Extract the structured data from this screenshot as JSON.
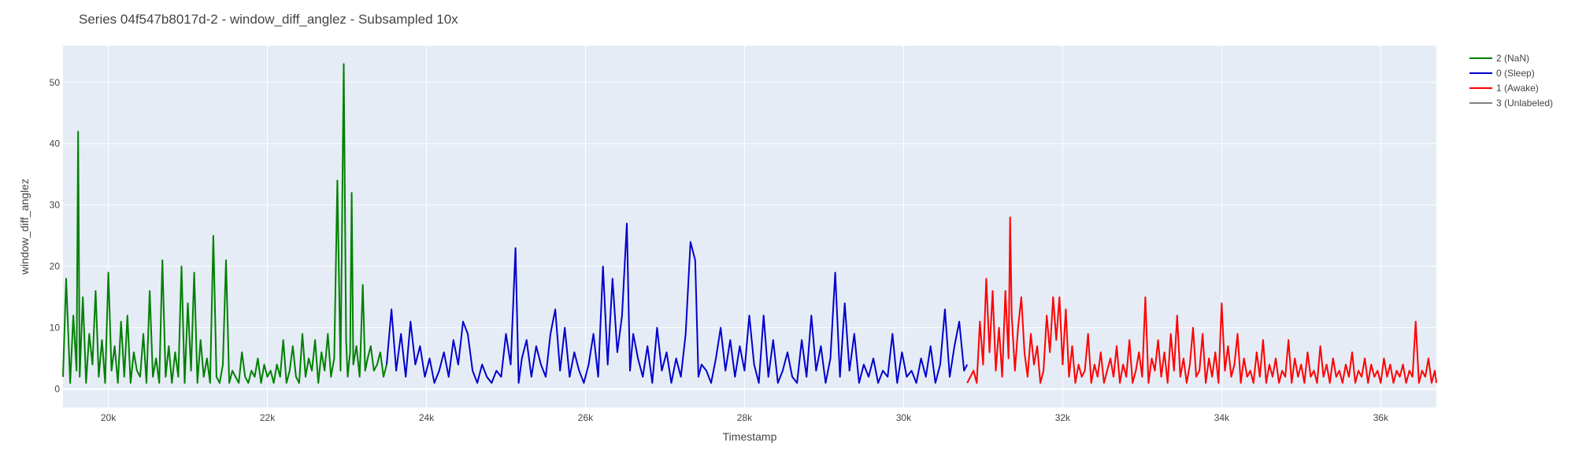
{
  "chart_data": {
    "type": "line",
    "title": "Series 04f547b8017d-2 - window_diff_anglez - Subsampled 10x",
    "xlabel": "Timestamp",
    "ylabel": "window_diff_anglez",
    "xlim": [
      19430,
      36700
    ],
    "ylim": [
      -3,
      56
    ],
    "xticks": [
      20000,
      22000,
      24000,
      26000,
      28000,
      30000,
      32000,
      34000,
      36000
    ],
    "xtick_labels": [
      "20k",
      "22k",
      "24k",
      "26k",
      "28k",
      "30k",
      "32k",
      "34k",
      "36k"
    ],
    "yticks": [
      0,
      10,
      20,
      30,
      40,
      50
    ],
    "ytick_labels": [
      "0",
      "10",
      "20",
      "30",
      "40",
      "50"
    ],
    "grid": true,
    "legend_position": "top-right",
    "plot_background": "#e5ecf6",
    "series": [
      {
        "name": "2 (NaN)",
        "color": "#008000",
        "x": [
          19430,
          19470,
          19520,
          19560,
          19600,
          19620,
          19640,
          19680,
          19720,
          19760,
          19800,
          19840,
          19880,
          19920,
          19960,
          20000,
          20040,
          20080,
          20120,
          20160,
          20200,
          20240,
          20280,
          20320,
          20360,
          20400,
          20440,
          20480,
          20520,
          20560,
          20600,
          20640,
          20680,
          20720,
          20760,
          20800,
          20840,
          20880,
          20920,
          20960,
          21000,
          21040,
          21080,
          21120,
          21160,
          21200,
          21240,
          21280,
          21320,
          21360,
          21400,
          21440,
          21480,
          21520,
          21560,
          21600,
          21640,
          21680,
          21720,
          21760,
          21800,
          21840,
          21880,
          21920,
          21960,
          22000,
          22040,
          22080,
          22120,
          22160,
          22200,
          22240,
          22280,
          22320,
          22360,
          22400,
          22440,
          22480,
          22520,
          22560,
          22600,
          22640,
          22680,
          22720,
          22760,
          22800,
          22840,
          22880,
          22920,
          22960,
          22990,
          23010,
          23040,
          23060,
          23080,
          23120,
          23160,
          23200,
          23230,
          23260,
          23300,
          23340,
          23380,
          23420,
          23460,
          23500
        ],
        "y": [
          2,
          18,
          1,
          12,
          3,
          42,
          2,
          15,
          1,
          9,
          4,
          16,
          2,
          8,
          1,
          19,
          3,
          7,
          1,
          11,
          2,
          12,
          1,
          6,
          3,
          2,
          9,
          1,
          16,
          2,
          5,
          1,
          21,
          2,
          7,
          1,
          6,
          2,
          20,
          1,
          14,
          3,
          19,
          1,
          8,
          2,
          5,
          1,
          25,
          2,
          1,
          4,
          21,
          1,
          3,
          2,
          1,
          6,
          2,
          1,
          3,
          2,
          5,
          1,
          4,
          2,
          3,
          1,
          4,
          2,
          8,
          1,
          3,
          7,
          2,
          1,
          9,
          2,
          5,
          3,
          8,
          1,
          6,
          3,
          9,
          2,
          5,
          34,
          3,
          53,
          8,
          2,
          6,
          32,
          4,
          7,
          2,
          17,
          3,
          5,
          7,
          3,
          4,
          6,
          2,
          4
        ]
      },
      {
        "name": "0 (Sleep)",
        "color": "#0000cd",
        "x": [
          23500,
          23560,
          23620,
          23680,
          23740,
          23800,
          23860,
          23920,
          23980,
          24040,
          24100,
          24160,
          24220,
          24280,
          24340,
          24400,
          24460,
          24520,
          24580,
          24640,
          24700,
          24760,
          24820,
          24880,
          24940,
          25000,
          25060,
          25120,
          25160,
          25200,
          25260,
          25320,
          25380,
          25440,
          25500,
          25560,
          25620,
          25680,
          25740,
          25800,
          25860,
          25920,
          25980,
          26040,
          26100,
          26160,
          26220,
          26280,
          26340,
          26400,
          26460,
          26520,
          26560,
          26600,
          26660,
          26720,
          26780,
          26840,
          26900,
          26960,
          27020,
          27080,
          27140,
          27200,
          27260,
          27320,
          27380,
          27420,
          27460,
          27520,
          27580,
          27640,
          27700,
          27760,
          27820,
          27880,
          27940,
          28000,
          28060,
          28120,
          28180,
          28240,
          28300,
          28360,
          28420,
          28480,
          28540,
          28600,
          28660,
          28720,
          28780,
          28840,
          28900,
          28960,
          29020,
          29080,
          29140,
          29200,
          29260,
          29320,
          29380,
          29440,
          29500,
          29560,
          29620,
          29680,
          29740,
          29800,
          29860,
          29920,
          29980,
          30040,
          30100,
          30160,
          30220,
          30280,
          30340,
          30400,
          30460,
          30520,
          30580,
          30640,
          30700,
          30760,
          30800
        ],
        "y": [
          4,
          13,
          3,
          9,
          2,
          11,
          4,
          7,
          2,
          5,
          1,
          3,
          6,
          2,
          8,
          4,
          11,
          9,
          3,
          1,
          4,
          2,
          1,
          3,
          2,
          9,
          4,
          23,
          1,
          5,
          8,
          2,
          7,
          4,
          2,
          9,
          13,
          3,
          10,
          2,
          6,
          3,
          1,
          4,
          9,
          2,
          20,
          4,
          18,
          6,
          12,
          27,
          3,
          9,
          5,
          2,
          7,
          1,
          10,
          3,
          6,
          1,
          5,
          2,
          9,
          24,
          21,
          2,
          4,
          3,
          1,
          5,
          10,
          3,
          8,
          2,
          7,
          3,
          12,
          4,
          1,
          12,
          2,
          8,
          1,
          3,
          6,
          2,
          1,
          8,
          2,
          12,
          3,
          7,
          1,
          5,
          19,
          2,
          14,
          3,
          9,
          1,
          4,
          2,
          5,
          1,
          3,
          2,
          9,
          1,
          6,
          2,
          3,
          1,
          5,
          2,
          7,
          1,
          4,
          13,
          2,
          7,
          11,
          3,
          4
        ]
      },
      {
        "name": "1 (Awake)",
        "color": "#ff0000",
        "x": [
          30800,
          30840,
          30880,
          30920,
          30960,
          31000,
          31040,
          31080,
          31120,
          31160,
          31200,
          31240,
          31280,
          31320,
          31340,
          31360,
          31400,
          31440,
          31480,
          31520,
          31560,
          31600,
          31640,
          31680,
          31720,
          31760,
          31800,
          31840,
          31880,
          31920,
          31960,
          32000,
          32040,
          32080,
          32120,
          32160,
          32200,
          32240,
          32280,
          32320,
          32360,
          32400,
          32440,
          32480,
          32520,
          32560,
          32600,
          32640,
          32680,
          32720,
          32760,
          32800,
          32840,
          32880,
          32920,
          32960,
          33000,
          33040,
          33080,
          33120,
          33160,
          33200,
          33240,
          33280,
          33320,
          33360,
          33400,
          33440,
          33480,
          33520,
          33560,
          33600,
          33640,
          33680,
          33720,
          33760,
          33800,
          33840,
          33880,
          33920,
          33960,
          34000,
          34040,
          34080,
          34120,
          34160,
          34200,
          34240,
          34280,
          34320,
          34360,
          34400,
          34440,
          34480,
          34520,
          34560,
          34600,
          34640,
          34680,
          34720,
          34760,
          34800,
          34840,
          34880,
          34920,
          34960,
          35000,
          35040,
          35080,
          35120,
          35160,
          35200,
          35240,
          35280,
          35320,
          35360,
          35400,
          35440,
          35480,
          35520,
          35560,
          35600,
          35640,
          35680,
          35720,
          35760,
          35800,
          35840,
          35880,
          35920,
          35960,
          36000,
          36040,
          36080,
          36120,
          36160,
          36200,
          36240,
          36280,
          36320,
          36360,
          36400,
          36440,
          36480,
          36520,
          36560,
          36600,
          36640,
          36680,
          36700
        ],
        "y": [
          1,
          2,
          3,
          1,
          11,
          4,
          18,
          6,
          16,
          3,
          10,
          2,
          16,
          5,
          28,
          12,
          3,
          10,
          15,
          6,
          2,
          9,
          4,
          7,
          1,
          3,
          12,
          6,
          15,
          8,
          15,
          4,
          13,
          2,
          7,
          1,
          4,
          2,
          3,
          9,
          1,
          4,
          2,
          6,
          1,
          3,
          5,
          2,
          7,
          1,
          4,
          2,
          8,
          1,
          3,
          6,
          2,
          15,
          1,
          5,
          3,
          8,
          2,
          6,
          1,
          9,
          3,
          12,
          2,
          5,
          1,
          4,
          10,
          2,
          3,
          9,
          1,
          5,
          2,
          6,
          1,
          14,
          3,
          7,
          2,
          4,
          9,
          1,
          5,
          2,
          3,
          1,
          6,
          2,
          8,
          1,
          4,
          2,
          5,
          1,
          3,
          2,
          8,
          1,
          5,
          2,
          4,
          1,
          6,
          2,
          3,
          1,
          7,
          2,
          4,
          1,
          5,
          2,
          3,
          1,
          4,
          2,
          6,
          1,
          3,
          2,
          5,
          1,
          4,
          2,
          3,
          1,
          5,
          2,
          4,
          1,
          3,
          2,
          4,
          1,
          3,
          2,
          11,
          1,
          3,
          2,
          5,
          1,
          3,
          1
        ]
      },
      {
        "name": "3 (Unlabeled)",
        "color": "#808080",
        "x": [],
        "y": []
      }
    ]
  }
}
